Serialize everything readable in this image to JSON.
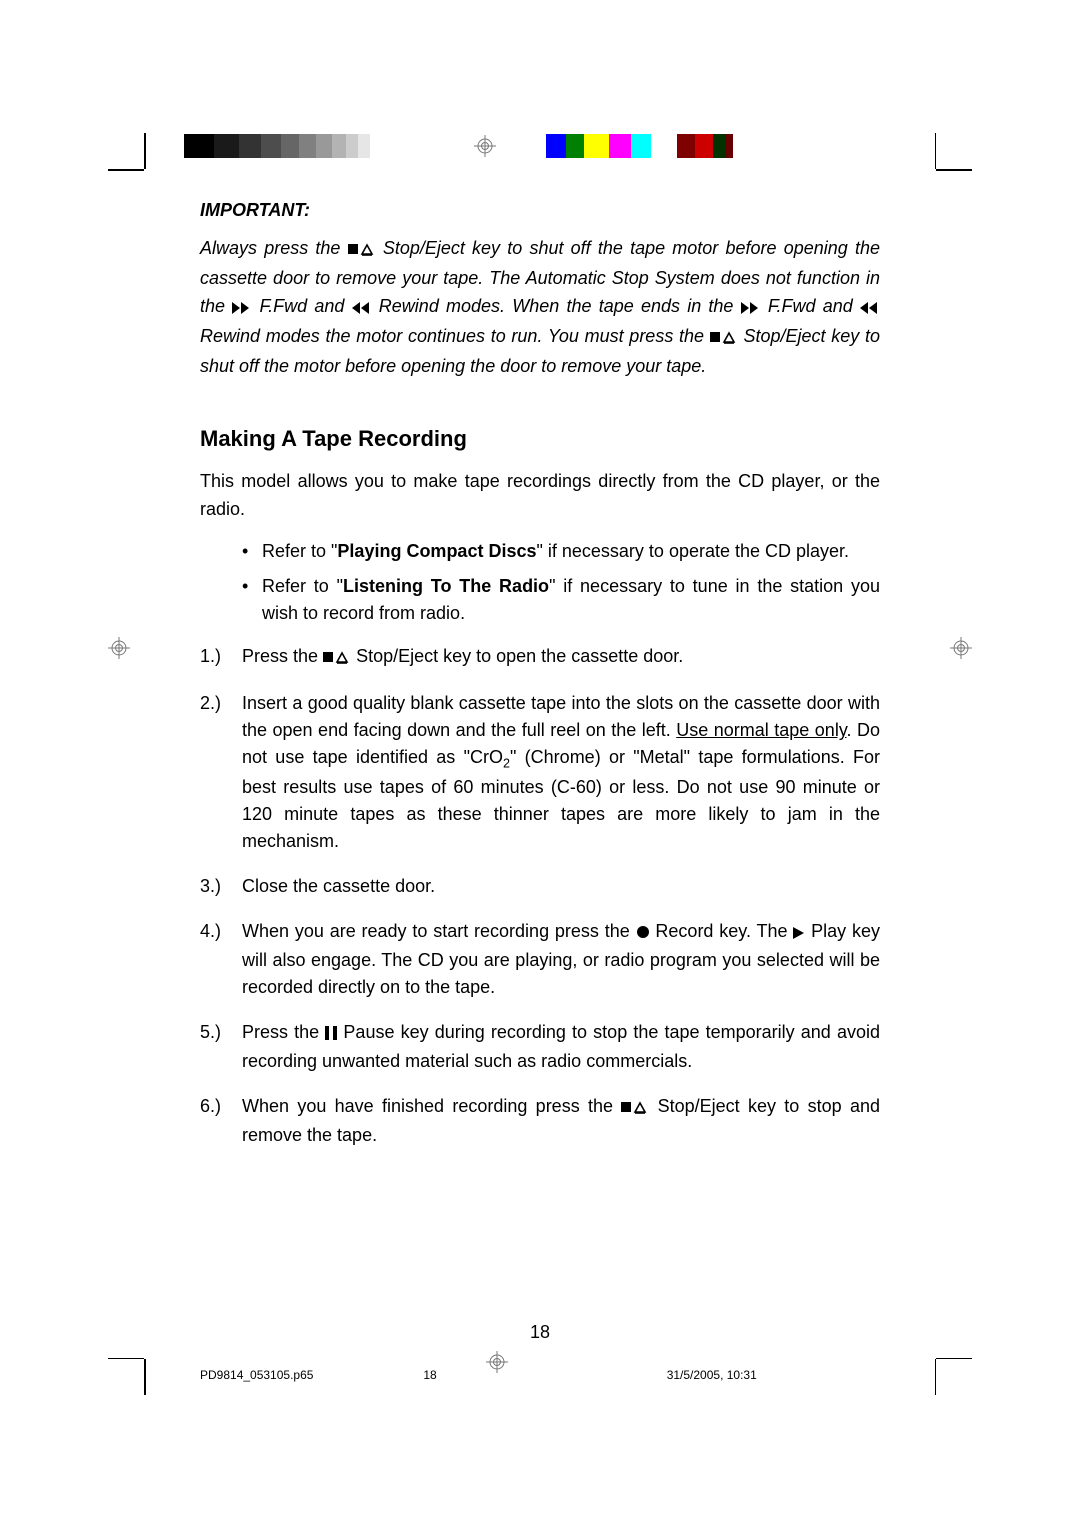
{
  "colors": {
    "greyscale": [
      "#000000",
      "#1a1a1a",
      "#333333",
      "#4d4d4d",
      "#666666",
      "#808080",
      "#999999",
      "#b3b3b3",
      "#cccccc",
      "#e6e6e6"
    ],
    "colorbar": [
      "#0000ff",
      "#008000",
      "#ffff00",
      "#ff00ff",
      "#00ffff",
      "#ffffff",
      "#7f0000",
      "#cc0000",
      "#003300",
      "#660000"
    ],
    "greyscale_widths": [
      30,
      25,
      22,
      20,
      18,
      17,
      16,
      14,
      12,
      12
    ],
    "colorbar_widths": [
      20,
      18,
      25,
      22,
      20,
      26,
      18,
      18,
      12,
      8
    ]
  },
  "important": {
    "heading": "IMPORTANT:",
    "text_a": "Always press the ",
    "stopeject_a": " Stop/Eject key to shut off the tape motor before opening the cassette door to remove your tape. The Automatic Stop System does not function in the ",
    "ffwd": " F.Fwd and ",
    "rewind": " Rewind modes. When the tape ends in the ",
    "ffwd2": " F.Fwd and ",
    "rewind2": " Rewind modes the motor continues to run. You must press the ",
    "stopeject_b": " Stop/Eject key to shut off the motor before opening the door to remove your tape."
  },
  "section_title": "Making A Tape Recording",
  "intro": "This model allows you to make tape recordings directly from the CD player, or the radio.",
  "bullets": [
    {
      "pre": "Refer to \"",
      "bold": "Playing Compact Discs",
      "post": "\" if necessary to operate the CD player."
    },
    {
      "pre": "Refer to \"",
      "bold": "Listening To The Radio",
      "post": "\" if necessary to tune in the station you wish to record from radio."
    }
  ],
  "steps": {
    "s1": {
      "num": "1.)",
      "a": "Press the ",
      "b": " Stop/Eject key to open the cassette door."
    },
    "s2": {
      "num": "2.)",
      "a": "Insert a good quality blank cassette tape into the slots on the cassette door with the open end facing down and the full reel on the left. ",
      "u": "Use normal tape only",
      "b": ". Do not use tape identified as \"CrO",
      "sub": "2",
      "c": "\" (Chrome) or \"Metal\" tape formulations. For best results use tapes of 60 minutes (C-60) or less. Do not use 90 minute or 120 minute tapes as these thinner tapes are more likely to jam in the mechanism."
    },
    "s3": {
      "num": "3.)",
      "a": "Close the cassette door."
    },
    "s4": {
      "num": "4.)",
      "a": "When you are ready to start recording press the ",
      "b": " Record key. The ",
      "c": " Play key will also engage. The CD you are playing, or radio program you selected will be recorded directly on to the tape."
    },
    "s5": {
      "num": "5.)",
      "a": "Press the ",
      "b": " Pause key during recording to stop the tape temporarily and avoid recording unwanted material such as radio commercials."
    },
    "s6": {
      "num": "6.)",
      "a": "When you have finished recording press the ",
      "b": " Stop/Eject key to stop and remove the tape."
    }
  },
  "page_number": "18",
  "footer": {
    "file": "PD9814_053105.p65",
    "page": "18",
    "date": "31/5/2005, 10:31"
  },
  "icons": {
    "stop_eject_svg": "<svg width='28' height='14' viewBox='0 0 28 14'><rect x='0' y='2' width='10' height='10' fill='#000'/><path d='M14 12 L19 3 L24 12 Z' fill='none' stroke='#000' stroke-width='1.6'/><line x1='14' y1='13' x2='24' y2='13' stroke='#000' stroke-width='1.6'/></svg>",
    "ffwd_svg": "<svg width='20' height='12' viewBox='0 0 20 12'><path d='M0 0 L8 6 L0 12 Z' fill='#000'/><path d='M9 0 L17 6 L9 12 Z' fill='#000'/></svg>",
    "rewind_svg": "<svg width='20' height='12' viewBox='0 0 20 12'><path d='M8 0 L0 6 L8 12 Z' fill='#000'/><path d='M17 0 L9 6 L17 12 Z' fill='#000'/></svg>",
    "record_svg": "<svg width='14' height='14' viewBox='0 0 14 14'><circle cx='7' cy='7' r='6' fill='#000'/></svg>",
    "play_svg": "<svg width='12' height='12' viewBox='0 0 12 12'><path d='M0 0 L11 6 L0 12 Z' fill='#000'/></svg>",
    "pause_svg": "<svg width='12' height='14' viewBox='0 0 12 14'><rect x='0' y='0' width='4' height='14' fill='#000'/><rect x='8' y='0' width='4' height='14' fill='#000'/></svg>",
    "reg_svg": "<svg viewBox='0 0 22 22'><circle cx='11' cy='11' r='7' fill='none' stroke='#777' stroke-width='1'/><circle cx='11' cy='11' r='3.5' fill='none' stroke='#777' stroke-width='1'/><line x1='0' y1='11' x2='22' y2='11' stroke='#777' stroke-width='1'/><line x1='11' y1='0' x2='11' y2='22' stroke='#777' stroke-width='1'/></svg>"
  }
}
